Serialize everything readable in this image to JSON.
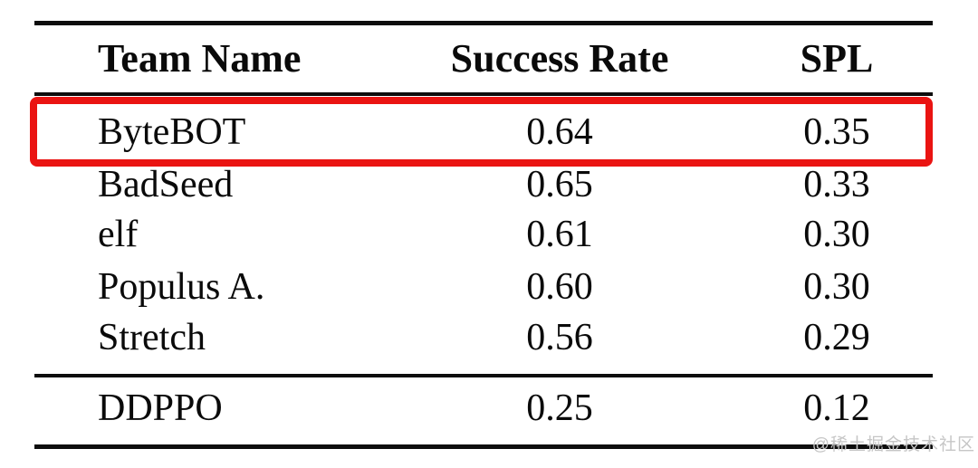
{
  "table": {
    "headers": [
      "Team Name",
      "Success Rate",
      "SPL"
    ],
    "rows": [
      {
        "team": "ByteBOT",
        "success_rate": "0.64",
        "spl": "0.35",
        "highlighted": true
      },
      {
        "team": "BadSeed",
        "success_rate": "0.65",
        "spl": "0.33",
        "highlighted": false
      },
      {
        "team": "elf",
        "success_rate": "0.61",
        "spl": "0.30",
        "highlighted": false
      },
      {
        "team": "Populus A.",
        "success_rate": "0.60",
        "spl": "0.30",
        "highlighted": false
      },
      {
        "team": "Stretch",
        "success_rate": "0.56",
        "spl": "0.29",
        "highlighted": false
      }
    ],
    "baseline_row": {
      "team": "DDPPO",
      "success_rate": "0.25",
      "spl": "0.12"
    }
  },
  "colors": {
    "highlight_red": "#ea1412",
    "text_black": "#0a0a0a",
    "rule_black": "#0d0d0d",
    "watermark_gray": "#c6c6c6"
  },
  "watermark": "@稀土掘金技术社区"
}
